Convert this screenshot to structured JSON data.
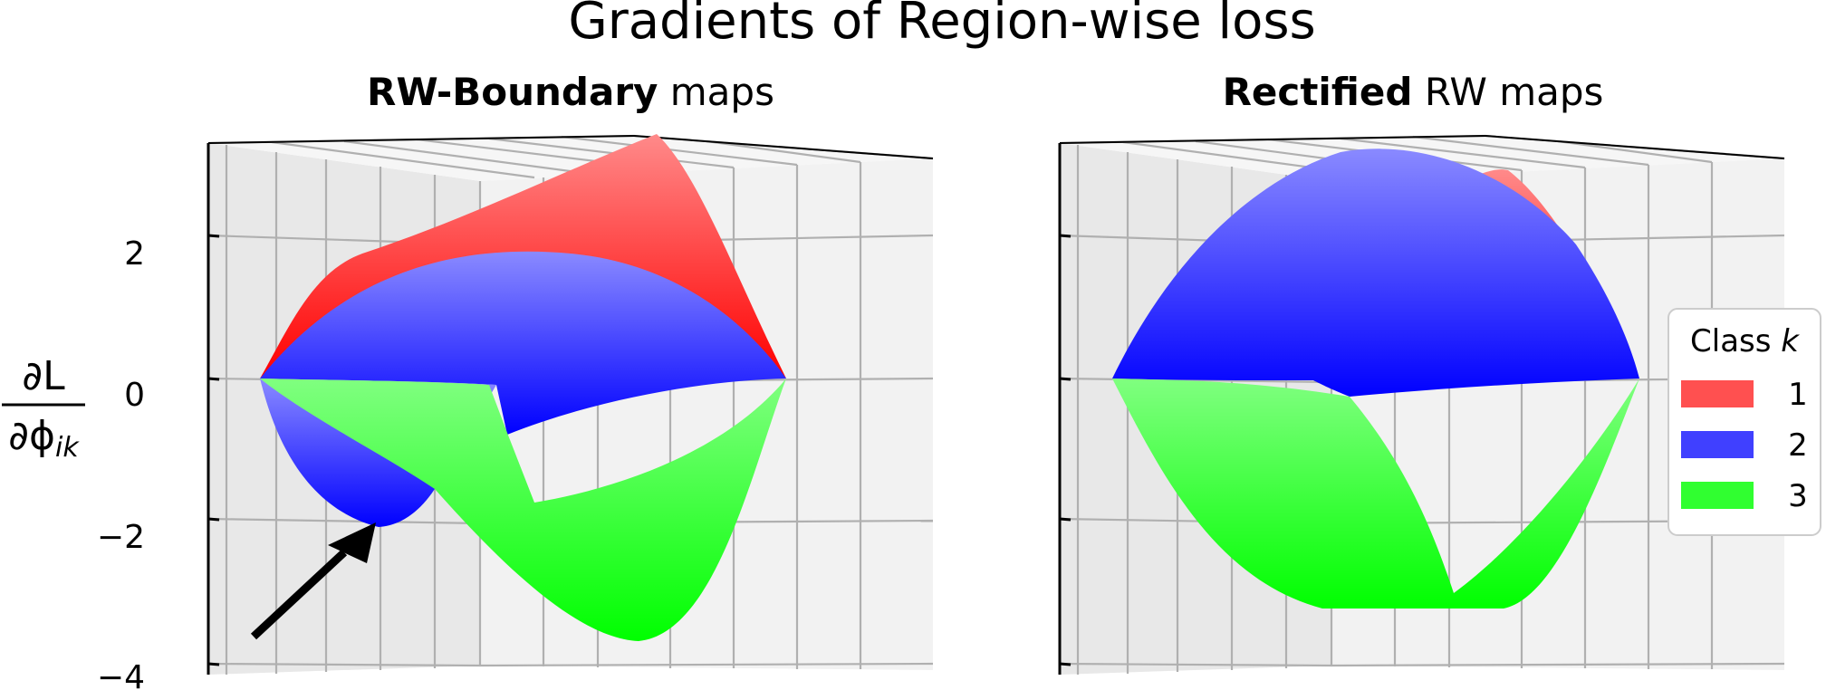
{
  "chart_data": {
    "type": "surface",
    "title": "Gradients of Region-wise loss",
    "ylabel": {
      "numerator": "∂L",
      "denominator": "∂ϕ",
      "subscript": "ik"
    },
    "yticks": [
      2,
      0,
      -2,
      -4
    ],
    "tick_labels": [
      "2",
      "0",
      "−2",
      "−4"
    ],
    "legend": {
      "title_prefix": "Class ",
      "title_var": "k",
      "placement": "right",
      "entries": [
        {
          "label": "1",
          "color": "#ff5050"
        },
        {
          "label": "2",
          "color": "#4040ff"
        },
        {
          "label": "3",
          "color": "#30ff30"
        }
      ]
    },
    "series_colors": {
      "1": "#ff0000",
      "2": "#0000ff",
      "3": "#00ff00"
    },
    "panels": [
      {
        "title_bold": "RW-Boundary",
        "title_rest": " maps",
        "annotation": "arrow",
        "class_peak": {
          "1": 3.5,
          "2": 1.5,
          "3": -3.7
        },
        "class_min_extra": {
          "2": -2.0
        }
      },
      {
        "title_bold": "Rectified",
        "title_rest": " RW maps",
        "class_peak": {
          "1": 3.0,
          "2": 3.3,
          "3": -3.2
        }
      }
    ]
  }
}
